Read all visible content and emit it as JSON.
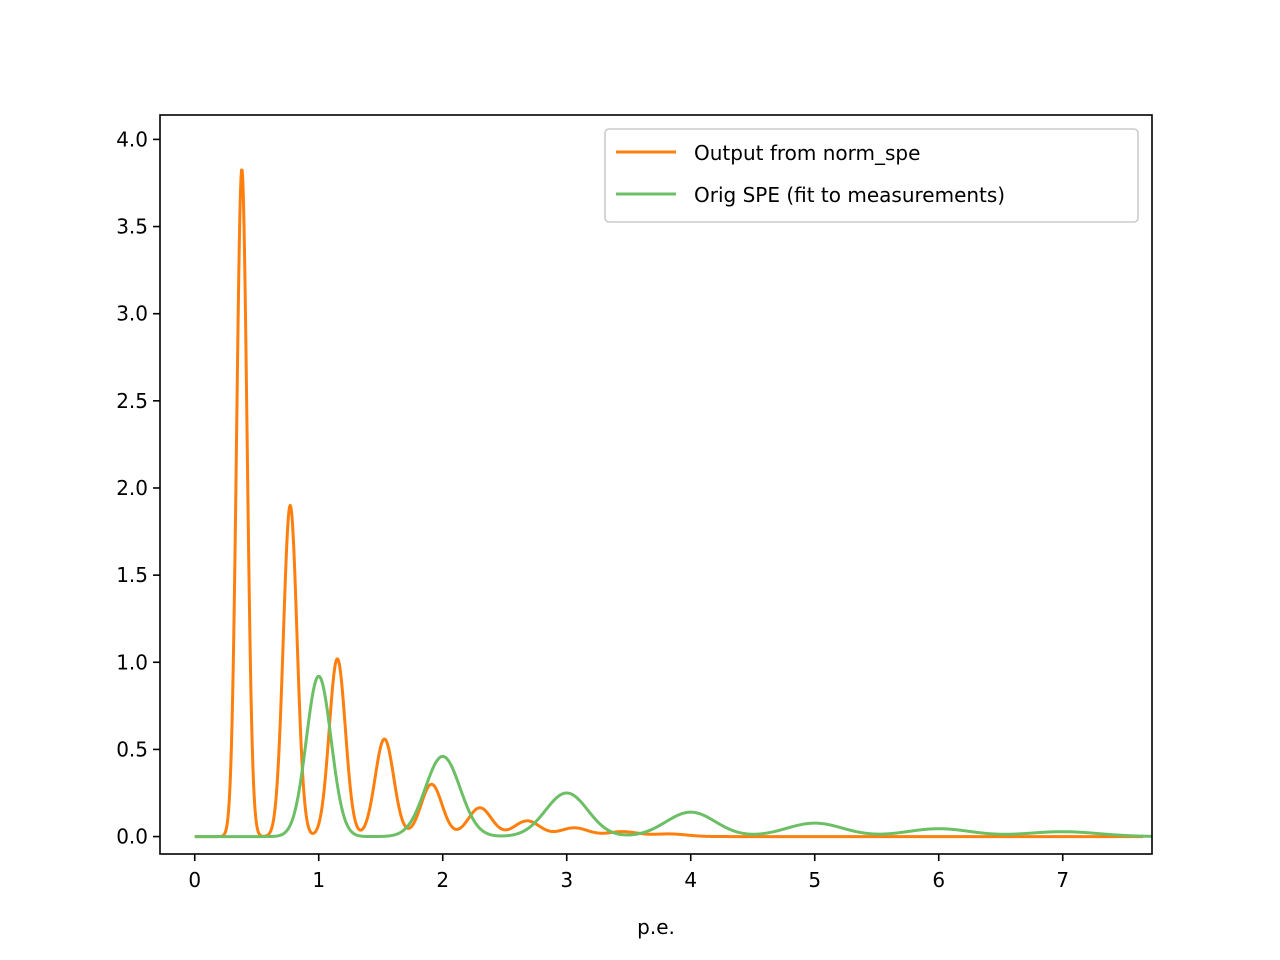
{
  "chart_data": {
    "type": "line",
    "title": "",
    "xlabel": "p.e.",
    "ylabel": "",
    "xlim": [
      -0.28,
      7.72
    ],
    "ylim": [
      -0.1,
      4.14
    ],
    "xticks": [
      0,
      1,
      2,
      3,
      4,
      5,
      6,
      7
    ],
    "xtick_labels": [
      "0",
      "1",
      "2",
      "3",
      "4",
      "5",
      "6",
      "7"
    ],
    "yticks": [
      0.0,
      0.5,
      1.0,
      1.5,
      2.0,
      2.5,
      3.0,
      3.5,
      4.0
    ],
    "ytick_labels": [
      "0.0",
      "0.5",
      "1.0",
      "1.5",
      "2.0",
      "2.5",
      "3.0",
      "3.5",
      "4.0"
    ],
    "grid": false,
    "legend_position": "top-right",
    "series": [
      {
        "name": "Output from norm_spe",
        "color": "#ff7f0e",
        "x_range": [
          0,
          7.65
        ],
        "peaks": [
          {
            "center": 0.38,
            "height": 3.83,
            "width": 0.042
          },
          {
            "center": 0.77,
            "height": 1.9,
            "width": 0.055
          },
          {
            "center": 1.15,
            "height": 1.02,
            "width": 0.065
          },
          {
            "center": 1.53,
            "height": 0.56,
            "width": 0.075
          },
          {
            "center": 1.91,
            "height": 0.3,
            "width": 0.085
          },
          {
            "center": 2.3,
            "height": 0.165,
            "width": 0.095
          },
          {
            "center": 2.68,
            "height": 0.09,
            "width": 0.105
          },
          {
            "center": 3.06,
            "height": 0.05,
            "width": 0.115
          },
          {
            "center": 3.45,
            "height": 0.028,
            "width": 0.125
          },
          {
            "center": 3.83,
            "height": 0.015,
            "width": 0.135
          }
        ]
      },
      {
        "name": "Orig SPE (fit to measurements)",
        "color": "#6dbf66",
        "x_range": [
          0,
          7.72
        ],
        "peaks": [
          {
            "center": 1.0,
            "height": 0.92,
            "width": 0.1
          },
          {
            "center": 2.0,
            "height": 0.46,
            "width": 0.14
          },
          {
            "center": 3.0,
            "height": 0.25,
            "width": 0.17
          },
          {
            "center": 4.0,
            "height": 0.14,
            "width": 0.2
          },
          {
            "center": 5.0,
            "height": 0.077,
            "width": 0.23
          },
          {
            "center": 6.0,
            "height": 0.045,
            "width": 0.26
          },
          {
            "center": 7.0,
            "height": 0.028,
            "width": 0.29
          }
        ]
      }
    ]
  }
}
